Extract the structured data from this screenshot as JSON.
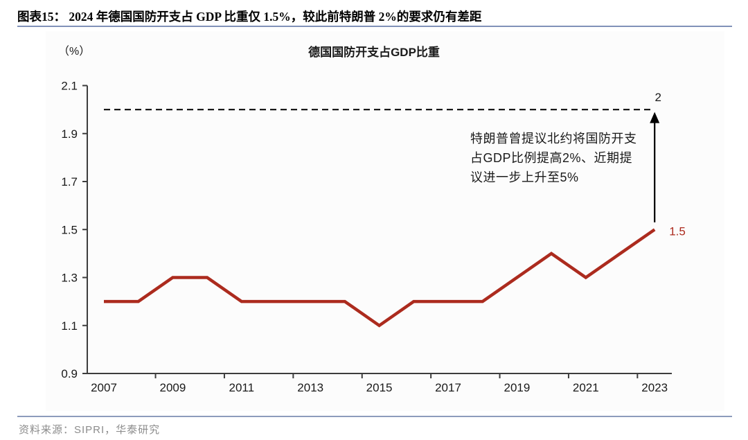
{
  "header": {
    "title": "图表15： 2024 年德国国防开支占 GDP 比重仅 1.5%，较此前特朗普 2%的要求仍有差距"
  },
  "footer": {
    "source": "资料来源：SIPRI，华泰研究"
  },
  "colors": {
    "line_red": "#AC2B1E",
    "title_underline": "#8091B8",
    "footer_divider": "#8D9CBC",
    "axis": "#3D3D3D",
    "text": "#1A1A1A",
    "reference_line": "#1A1A1A",
    "source_text": "#8C8C8C"
  },
  "chart_data": {
    "type": "line",
    "title": "德国国防开支占GDP比重",
    "unit_label": "（%）",
    "x": [
      2007,
      2008,
      2009,
      2010,
      2011,
      2012,
      2013,
      2014,
      2015,
      2016,
      2017,
      2018,
      2019,
      2020,
      2021,
      2022,
      2023
    ],
    "series": [
      {
        "name": "德国国防开支占GDP比重",
        "color": "#AC2B1E",
        "values": [
          1.2,
          1.2,
          1.3,
          1.3,
          1.2,
          1.2,
          1.2,
          1.2,
          1.1,
          1.2,
          1.2,
          1.2,
          1.3,
          1.4,
          1.3,
          1.4,
          1.5
        ]
      }
    ],
    "ylim": [
      0.9,
      2.1
    ],
    "yticks": [
      0.9,
      1.1,
      1.3,
      1.5,
      1.7,
      1.9,
      2.1
    ],
    "xtick_labels": [
      "2007",
      "2009",
      "2011",
      "2013",
      "2015",
      "2017",
      "2019",
      "2021",
      "2023"
    ],
    "grid": false,
    "legend": "none",
    "reference_line": {
      "value": 2.0,
      "label": "2",
      "style": "dashed"
    },
    "last_point_label": "1.5",
    "annotation": {
      "lines": [
        "特朗普曾提议北约将国防开支",
        "占GDP比例提高2%、近期提",
        "议进一步上升至5%"
      ],
      "arrow": {
        "x_year": 2023,
        "from_value": 1.53,
        "to_value": 1.99
      }
    }
  }
}
